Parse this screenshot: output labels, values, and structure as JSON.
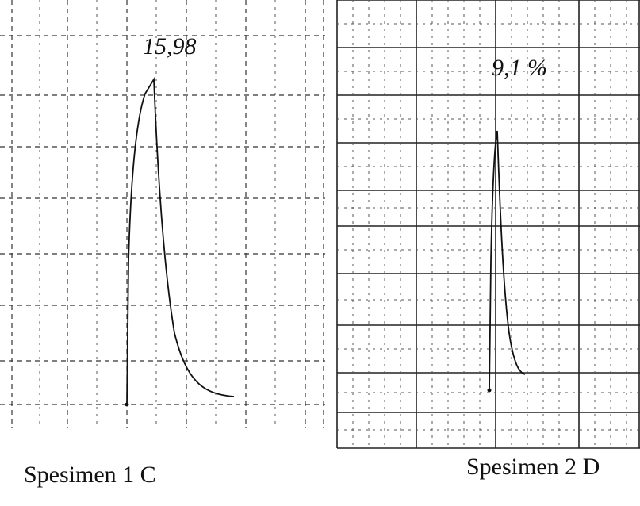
{
  "panels": [
    {
      "annotation": "15,98",
      "caption": "Spesimen 1 C"
    },
    {
      "annotation": "9,1 %",
      "caption": "Spesimen 2 D"
    }
  ]
}
